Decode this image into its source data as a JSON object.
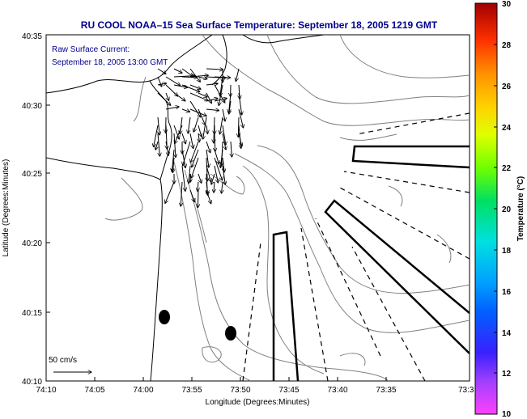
{
  "title": "RU COOL  NOAA–15  Sea Surface Temperature:  September 18, 2005 1219 GMT",
  "annotation": {
    "line1": "Raw Surface Current:",
    "line2": "September 18, 2005 13:00 GMT"
  },
  "axes": {
    "xlabel": "Longitude (Degrees:Minutes)",
    "ylabel": "Latitude (Degrees:Minutes)",
    "xticks": [
      "74:10",
      "74:05",
      "74:00",
      "73:55",
      "73:50",
      "73:45",
      "73:40",
      "73:35",
      "73:3"
    ],
    "yticks": [
      "40:35",
      "40:30",
      "40:25",
      "40:20",
      "40:15",
      "40:10"
    ]
  },
  "scale_arrow": {
    "label": "50 cm/s"
  },
  "colorbar": {
    "label": "Temperature (°C)",
    "ticks": [
      "30",
      "28",
      "26",
      "24",
      "22",
      "20",
      "18",
      "16",
      "14",
      "12",
      "10"
    ],
    "min": 10,
    "max": 30
  },
  "colors": {
    "title": "#00008b",
    "lines": "#000000",
    "contours": "#808080"
  }
}
